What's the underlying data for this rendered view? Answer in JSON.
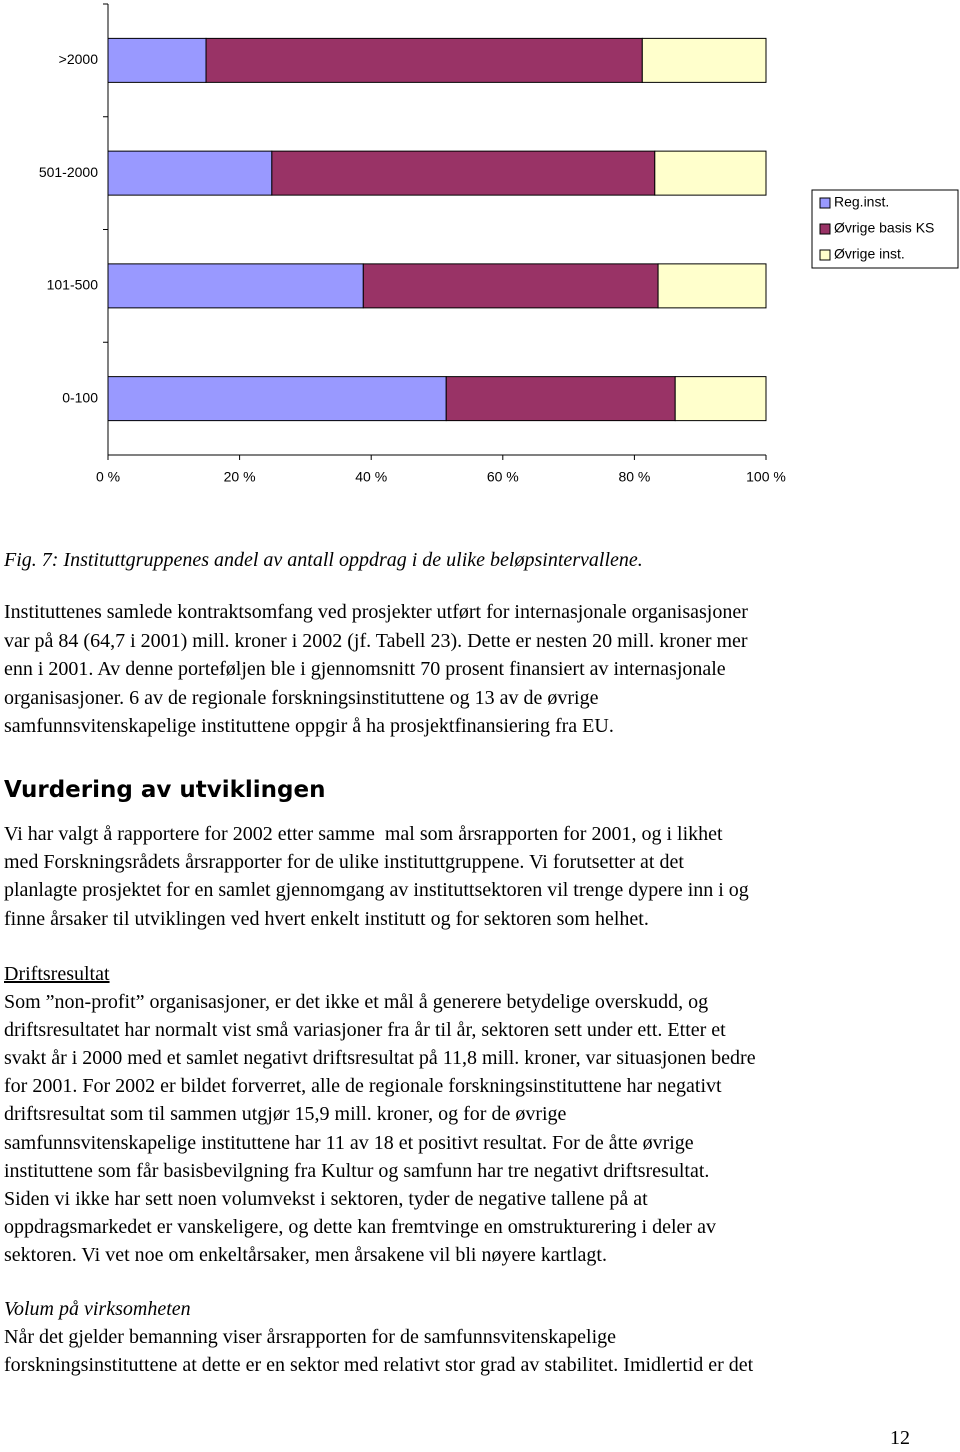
{
  "chart_data": {
    "type": "stacked_bar_horizontal",
    "categories": [
      ">2000",
      "501-2000",
      "101-500",
      "0-100"
    ],
    "series": [
      {
        "name": "Reg.inst.",
        "color": "#9999ff",
        "values": [
          14.9,
          24.9,
          38.8,
          51.4
        ]
      },
      {
        "name": "Øvrige basis KS",
        "color": "#993366",
        "values": [
          66.3,
          58.2,
          44.8,
          34.8
        ]
      },
      {
        "name": "Øvrige inst.",
        "color": "#ffffcc",
        "values": [
          18.8,
          16.9,
          16.4,
          13.8
        ]
      }
    ],
    "xlim": [
      0,
      100
    ],
    "xticks": [
      {
        "value": 0,
        "label": "0 %"
      },
      {
        "value": 20,
        "label": "20 %"
      },
      {
        "value": 40,
        "label": "40 %"
      },
      {
        "value": 60,
        "label": "60 %"
      },
      {
        "value": 80,
        "label": "80 %"
      },
      {
        "value": 100,
        "label": "100 %"
      }
    ],
    "legend": "right"
  },
  "document": {
    "caption": "Fig. 7: Instituttgruppenes andel av antall oppdrag i de ulike beløpsintervallene.",
    "paragraph_1": [
      "Instituttenes samlede kontraktsomfang ved prosjekter utført for internasjonale organisasjoner",
      "var på 84 (64,7 i 2001) mill. kroner i 2002 (jf. Tabell 23). Dette er nesten 20 mill. kroner mer",
      "enn i 2001. Av denne porteføljen ble i gjennomsnitt 70 prosent finansiert av internasjonale",
      "organisasjoner. 6 av de regionale forskningsinstituttene og 13 av de øvrige",
      "samfunnsvitenskapelige instituttene oppgir å ha prosjektfinansiering fra EU."
    ],
    "heading": "Vurdering av utviklingen",
    "paragraph_2": [
      "Vi har valgt å rapportere for 2002 etter samme  mal som årsrapporten for 2001, og i likhet",
      "med Forskningsrådets årsrapporter for de ulike instituttgruppene. Vi forutsetter at det",
      "planlagte prosjektet for en samlet gjennomgang av instituttsektoren vil trenge dypere inn i og",
      "finne årsaker til utviklingen ved hvert enkelt institutt og for sektoren som helhet."
    ],
    "subheading_1": "Driftsresultat",
    "paragraph_3": [
      "Som ”non-profit” organisasjoner, er det ikke et mål å generere betydelige overskudd, og",
      "driftsresultatet har normalt vist små variasjoner fra år til år, sektoren sett under ett. Etter et",
      "svakt år i 2000 med et samlet negativt driftsresultat på 11,8 mill. kroner, var situasjonen bedre",
      "for 2001. For 2002 er bildet forverret, alle de regionale forskningsinstituttene har negativt",
      "driftsresultat som til sammen utgjør 15,9 mill. kroner, og for de øvrige",
      "samfunnsvitenskapelige instituttene har 11 av 18 et positivt resultat. For de åtte øvrige",
      "instituttene som får basisbevilgning fra Kultur og samfunn har tre negativt driftsresultat.",
      "Siden vi ikke har sett noen volumvekst i sektoren, tyder de negative tallene på at",
      "oppdragsmarkedet er vanskeligere, og dette kan fremtvinge en omstrukturering i deler av",
      "sektoren. Vi vet noe om enkeltårsaker, men årsakene vil bli nøyere kartlagt."
    ],
    "subheading_2": "Volum på virksomheten",
    "paragraph_4": [
      "Når det gjelder bemanning viser årsrapporten for de samfunnsvitenskapelige",
      "forskningsinstituttene at dette er en sektor med relativt stor grad av stabilitet. Imidlertid er det"
    ],
    "page_number": "12"
  }
}
